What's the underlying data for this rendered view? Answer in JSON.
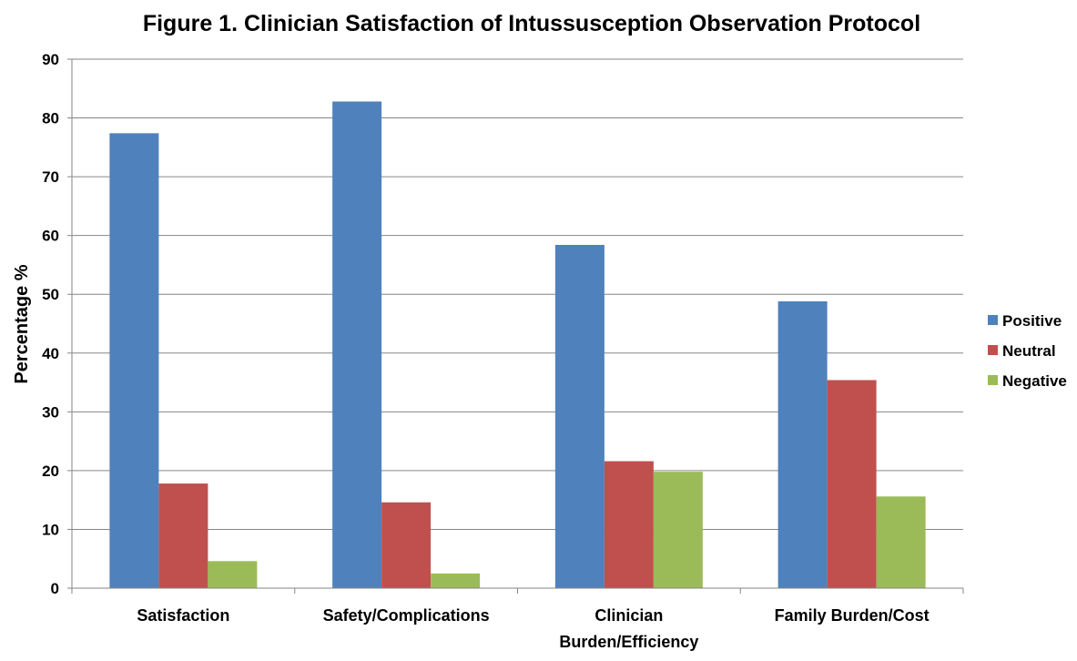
{
  "chart_data": {
    "type": "bar",
    "title": "Figure 1. Clinician Satisfaction of Intussusception Observation Protocol",
    "xlabel": "",
    "ylabel": "Percentage %",
    "ylim": [
      0,
      90
    ],
    "yticks": [
      0,
      10,
      20,
      30,
      40,
      50,
      60,
      70,
      80,
      90
    ],
    "grid": true,
    "legend_position": "right",
    "categories": [
      [
        "Satisfaction"
      ],
      [
        "Safety/Complications"
      ],
      [
        "Clinician",
        "Burden/Efficiency"
      ],
      [
        "Family Burden/Cost"
      ]
    ],
    "series": [
      {
        "name": "Positive",
        "color": "#4F81BD",
        "values": [
          77.4,
          82.8,
          58.4,
          48.8
        ]
      },
      {
        "name": "Neutral",
        "color": "#C0504D",
        "values": [
          17.8,
          14.6,
          21.6,
          35.4
        ]
      },
      {
        "name": "Negative",
        "color": "#9BBB59",
        "values": [
          4.6,
          2.5,
          19.8,
          15.6
        ]
      }
    ]
  }
}
